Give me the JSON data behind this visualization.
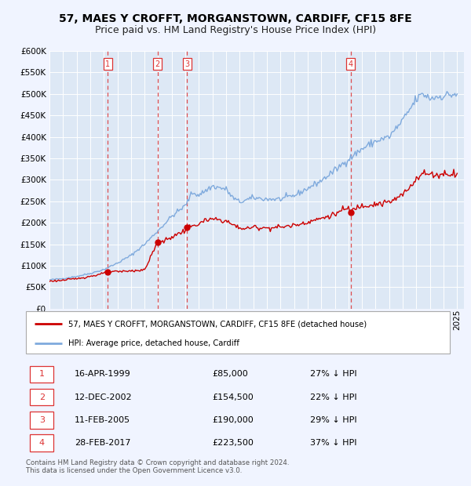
{
  "title": "57, MAES Y CROFFT, MORGANSTOWN, CARDIFF, CF15 8FE",
  "subtitle": "Price paid vs. HM Land Registry's House Price Index (HPI)",
  "ylim": [
    0,
    600000
  ],
  "yticks": [
    0,
    50000,
    100000,
    150000,
    200000,
    250000,
    300000,
    350000,
    400000,
    450000,
    500000,
    550000,
    600000
  ],
  "xlim_start": 1995.0,
  "xlim_end": 2025.5,
  "background_color": "#f0f4ff",
  "plot_bg_color": "#dde8f5",
  "grid_color": "#ffffff",
  "sale_color": "#cc0000",
  "hpi_color": "#7faadd",
  "vline_color": "#dd3333",
  "legend_label_sale": "57, MAES Y CROFFT, MORGANSTOWN, CARDIFF, CF15 8FE (detached house)",
  "legend_label_hpi": "HPI: Average price, detached house, Cardiff",
  "transactions": [
    {
      "num": 1,
      "date": 1999.29,
      "price": 85000,
      "label": "16-APR-1999",
      "pct": "27%"
    },
    {
      "num": 2,
      "date": 2002.95,
      "price": 154500,
      "label": "12-DEC-2002",
      "pct": "22%"
    },
    {
      "num": 3,
      "date": 2005.12,
      "price": 190000,
      "label": "11-FEB-2005",
      "pct": "29%"
    },
    {
      "num": 4,
      "date": 2017.16,
      "price": 223500,
      "label": "28-FEB-2017",
      "pct": "37%"
    }
  ],
  "footer": "Contains HM Land Registry data © Crown copyright and database right 2024.\nThis data is licensed under the Open Government Licence v3.0.",
  "title_fontsize": 10,
  "subtitle_fontsize": 9,
  "tick_fontsize": 7.5
}
